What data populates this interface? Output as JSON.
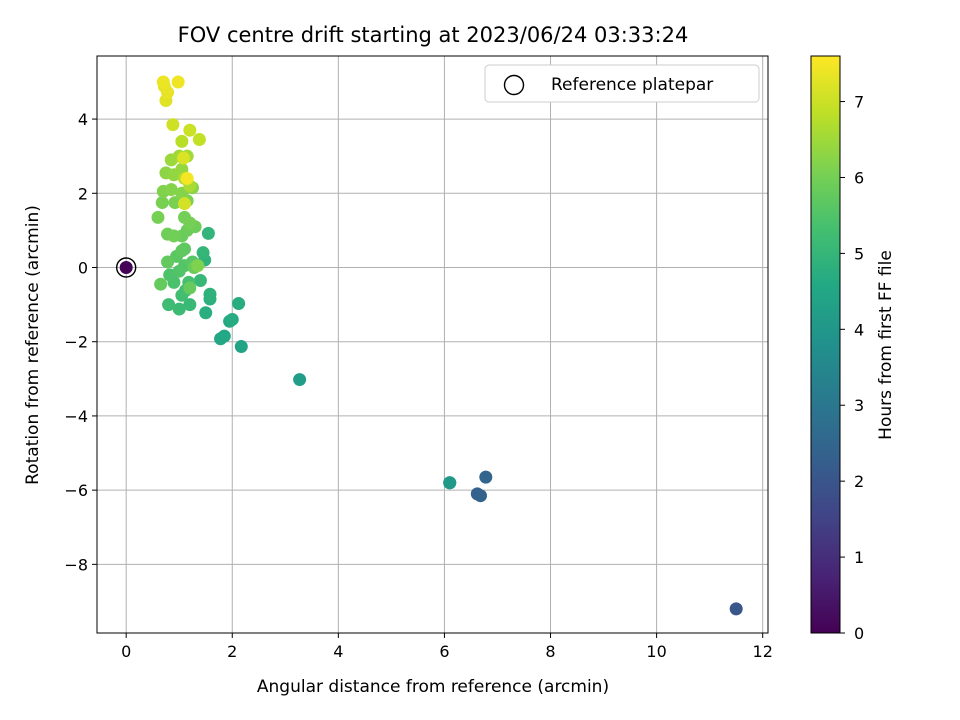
{
  "chart_data": {
    "type": "scatter",
    "title": "FOV centre drift starting at 2023/06/24 03:33:24",
    "xlabel": "Angular distance from reference (arcmin)",
    "ylabel": "Rotation from reference (arcmin)",
    "xlim": [
      -0.55,
      12.1
    ],
    "ylim": [
      -9.85,
      5.7
    ],
    "xticks": [
      0,
      2,
      4,
      6,
      8,
      10,
      12
    ],
    "xtick_labels": [
      "0",
      "2",
      "4",
      "6",
      "8",
      "10",
      "12"
    ],
    "yticks": [
      -8,
      -6,
      -4,
      -2,
      0,
      2,
      4
    ],
    "ytick_labels": [
      "−8",
      "−6",
      "−4",
      "−2",
      "0",
      "2",
      "4"
    ],
    "grid": true,
    "legend": {
      "placement": "top-right",
      "entries": [
        {
          "label": "Reference platepar",
          "marker": "open-circle"
        }
      ]
    },
    "colorbar": {
      "label": "Hours from first FF file",
      "range": [
        0,
        7.6
      ],
      "ticks": [
        0,
        1,
        2,
        3,
        4,
        5,
        6,
        7
      ],
      "tick_labels": [
        "0",
        "1",
        "2",
        "3",
        "4",
        "5",
        "6",
        "7"
      ],
      "colormap": "viridis"
    },
    "series": [
      {
        "color_by": "hours",
        "points": [
          {
            "x": 0.0,
            "y": 0.0,
            "c": 0.05
          },
          {
            "x": 11.5,
            "y": -9.2,
            "c": 2.05
          },
          {
            "x": 6.1,
            "y": -5.8,
            "c": 2.3
          },
          {
            "x": 6.62,
            "y": -6.1,
            "c": 2.35
          },
          {
            "x": 6.68,
            "y": -6.15,
            "c": 2.4
          },
          {
            "x": 6.78,
            "y": -5.65,
            "c": 2.45
          },
          {
            "x": 6.1,
            "y": -5.8,
            "c": 4.05
          },
          {
            "x": 3.27,
            "y": -3.02,
            "c": 4.2
          },
          {
            "x": 2.17,
            "y": -2.13,
            "c": 4.4
          },
          {
            "x": 1.78,
            "y": -1.92,
            "c": 4.5
          },
          {
            "x": 1.85,
            "y": -1.85,
            "c": 4.55
          },
          {
            "x": 1.95,
            "y": -1.45,
            "c": 4.6
          },
          {
            "x": 2.0,
            "y": -1.4,
            "c": 4.65
          },
          {
            "x": 2.12,
            "y": -0.97,
            "c": 4.7
          },
          {
            "x": 1.5,
            "y": -1.22,
            "c": 4.75
          },
          {
            "x": 1.58,
            "y": -0.85,
            "c": 4.8
          },
          {
            "x": 1.58,
            "y": -0.72,
            "c": 4.85
          },
          {
            "x": 1.48,
            "y": 0.2,
            "c": 4.9
          },
          {
            "x": 1.55,
            "y": 0.92,
            "c": 4.95
          },
          {
            "x": 1.45,
            "y": 0.4,
            "c": 5.0
          },
          {
            "x": 1.4,
            "y": -0.35,
            "c": 5.05
          },
          {
            "x": 1.2,
            "y": -1.0,
            "c": 5.1
          },
          {
            "x": 1.0,
            "y": -1.12,
            "c": 5.15
          },
          {
            "x": 0.8,
            "y": -1.0,
            "c": 5.2
          },
          {
            "x": 1.05,
            "y": -0.75,
            "c": 5.25
          },
          {
            "x": 1.12,
            "y": -0.62,
            "c": 5.3
          },
          {
            "x": 1.18,
            "y": -0.4,
            "c": 5.35
          },
          {
            "x": 0.9,
            "y": -0.4,
            "c": 5.4
          },
          {
            "x": 0.82,
            "y": -0.2,
            "c": 5.45
          },
          {
            "x": 1.0,
            "y": -0.1,
            "c": 5.5
          },
          {
            "x": 1.1,
            "y": 0.05,
            "c": 5.55
          },
          {
            "x": 1.25,
            "y": 0.15,
            "c": 5.6
          },
          {
            "x": 0.95,
            "y": 0.3,
            "c": 5.65
          },
          {
            "x": 1.05,
            "y": 0.45,
            "c": 5.7
          },
          {
            "x": 1.1,
            "y": 0.5,
            "c": 5.72
          },
          {
            "x": 0.78,
            "y": 0.15,
            "c": 5.75
          },
          {
            "x": 0.65,
            "y": -0.45,
            "c": 5.78
          },
          {
            "x": 1.2,
            "y": -0.55,
            "c": 5.8
          },
          {
            "x": 1.28,
            "y": 0.0,
            "c": 5.82
          },
          {
            "x": 1.05,
            "y": 0.85,
            "c": 5.85
          },
          {
            "x": 1.15,
            "y": 1.0,
            "c": 5.88
          },
          {
            "x": 1.3,
            "y": 1.1,
            "c": 5.9
          },
          {
            "x": 0.78,
            "y": 0.9,
            "c": 5.92
          },
          {
            "x": 0.9,
            "y": 0.85,
            "c": 5.95
          },
          {
            "x": 1.1,
            "y": 1.35,
            "c": 5.98
          },
          {
            "x": 1.2,
            "y": 1.2,
            "c": 6.0
          },
          {
            "x": 0.6,
            "y": 1.35,
            "c": 6.02
          },
          {
            "x": 0.68,
            "y": 1.75,
            "c": 6.05
          },
          {
            "x": 0.92,
            "y": 1.75,
            "c": 6.08
          },
          {
            "x": 1.15,
            "y": 1.8,
            "c": 6.1
          },
          {
            "x": 1.35,
            "y": 0.05,
            "c": 6.12
          },
          {
            "x": 0.7,
            "y": 2.05,
            "c": 6.15
          },
          {
            "x": 0.85,
            "y": 2.1,
            "c": 6.18
          },
          {
            "x": 1.05,
            "y": 2.0,
            "c": 6.2
          },
          {
            "x": 1.25,
            "y": 2.15,
            "c": 6.25
          },
          {
            "x": 0.75,
            "y": 2.55,
            "c": 6.3
          },
          {
            "x": 0.9,
            "y": 2.5,
            "c": 6.35
          },
          {
            "x": 1.05,
            "y": 2.65,
            "c": 6.4
          },
          {
            "x": 0.85,
            "y": 2.9,
            "c": 6.45
          },
          {
            "x": 1.0,
            "y": 3.0,
            "c": 6.5
          },
          {
            "x": 1.15,
            "y": 3.0,
            "c": 6.55
          },
          {
            "x": 1.2,
            "y": 2.2,
            "c": 6.6
          },
          {
            "x": 1.1,
            "y": 2.4,
            "c": 6.7
          },
          {
            "x": 1.05,
            "y": 3.4,
            "c": 6.8
          },
          {
            "x": 1.38,
            "y": 3.45,
            "c": 6.9
          },
          {
            "x": 1.2,
            "y": 3.7,
            "c": 7.0
          },
          {
            "x": 0.88,
            "y": 3.85,
            "c": 7.05
          },
          {
            "x": 1.1,
            "y": 1.72,
            "c": 7.1
          },
          {
            "x": 1.08,
            "y": 2.95,
            "c": 7.2
          },
          {
            "x": 0.75,
            "y": 4.5,
            "c": 7.25
          },
          {
            "x": 0.72,
            "y": 4.88,
            "c": 7.3
          },
          {
            "x": 0.78,
            "y": 4.72,
            "c": 7.35
          },
          {
            "x": 0.7,
            "y": 5.0,
            "c": 7.4
          },
          {
            "x": 0.98,
            "y": 5.0,
            "c": 7.45
          },
          {
            "x": 1.15,
            "y": 2.4,
            "c": 7.5
          }
        ]
      }
    ],
    "reference_marker": {
      "x": 0.0,
      "y": 0.0
    }
  }
}
